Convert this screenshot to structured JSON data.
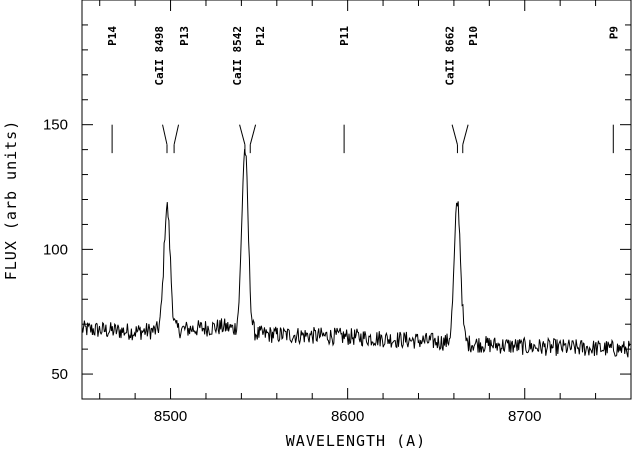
{
  "chart_data": {
    "type": "line",
    "xlabel": "WAVELENGTH (A)",
    "ylabel": "FLUX (arb units)",
    "xlim": [
      8450,
      8760
    ],
    "ylim": [
      40,
      200
    ],
    "x_ticks": [
      8500,
      8600,
      8700
    ],
    "y_ticks": [
      50,
      100,
      150
    ],
    "grid": false,
    "line_labels": [
      {
        "label": "P14",
        "wavelength": 8467
      },
      {
        "label": "CaII 8498",
        "wavelength": 8498
      },
      {
        "label": "P13",
        "wavelength": 8502
      },
      {
        "label": "CaII 8542",
        "wavelength": 8542
      },
      {
        "label": "P12",
        "wavelength": 8545
      },
      {
        "label": "P11",
        "wavelength": 8598
      },
      {
        "label": "CaII 8662",
        "wavelength": 8662
      },
      {
        "label": "P10",
        "wavelength": 8665
      },
      {
        "label": "P9",
        "wavelength": 8750
      }
    ],
    "peaks": [
      {
        "x": 8498,
        "y": 117,
        "halfwidth": 2.5
      },
      {
        "x": 8542,
        "y": 140,
        "halfwidth": 2.5
      },
      {
        "x": 8662,
        "y": 119,
        "halfwidth": 2.5
      }
    ],
    "continuum": [
      {
        "x": 8450,
        "y": 68
      },
      {
        "x": 8480,
        "y": 67
      },
      {
        "x": 8510,
        "y": 68
      },
      {
        "x": 8530,
        "y": 69
      },
      {
        "x": 8550,
        "y": 66
      },
      {
        "x": 8600,
        "y": 65
      },
      {
        "x": 8650,
        "y": 63
      },
      {
        "x": 8700,
        "y": 61
      },
      {
        "x": 8760,
        "y": 60
      }
    ],
    "noise_amplitude": 3.5
  }
}
